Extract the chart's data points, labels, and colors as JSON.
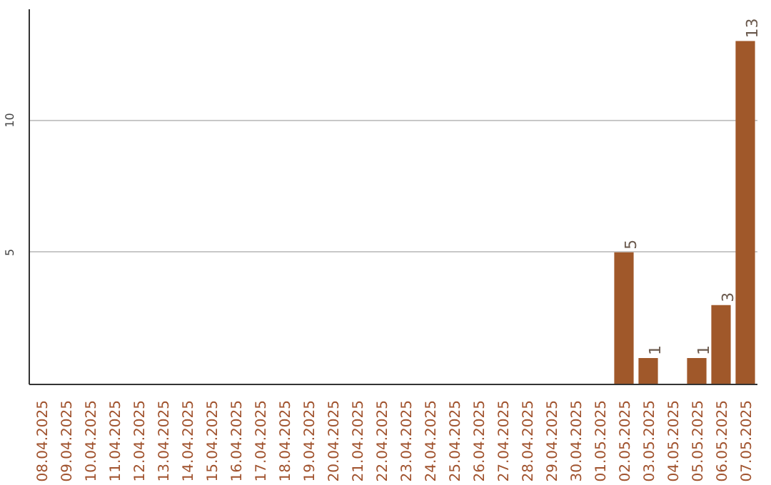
{
  "chart_data": {
    "type": "bar",
    "categories": [
      "08.04.2025",
      "09.04.2025",
      "10.04.2025",
      "11.04.2025",
      "12.04.2025",
      "13.04.2025",
      "14.04.2025",
      "15.04.2025",
      "16.04.2025",
      "17.04.2025",
      "18.04.2025",
      "19.04.2025",
      "20.04.2025",
      "21.04.2025",
      "22.04.2025",
      "23.04.2025",
      "24.04.2025",
      "25.04.2025",
      "26.04.2025",
      "27.04.2025",
      "28.04.2025",
      "29.04.2025",
      "30.04.2025",
      "01.05.2025",
      "02.05.2025",
      "03.05.2025",
      "04.05.2025",
      "05.05.2025",
      "06.05.2025",
      "07.05.2025"
    ],
    "values": [
      0,
      0,
      0,
      0,
      0,
      0,
      0,
      0,
      0,
      0,
      0,
      0,
      0,
      0,
      0,
      0,
      0,
      0,
      0,
      0,
      0,
      0,
      0,
      0,
      5,
      1,
      0,
      1,
      3,
      13
    ],
    "value_labels": [
      null,
      null,
      null,
      null,
      null,
      null,
      null,
      null,
      null,
      null,
      null,
      null,
      null,
      null,
      null,
      null,
      null,
      null,
      null,
      null,
      null,
      null,
      null,
      null,
      "5",
      "1",
      null,
      "1",
      "3",
      "13"
    ],
    "color": "#a0582a",
    "ylim": [
      0,
      14.2
    ],
    "yticks": [
      5,
      10
    ],
    "grid": "y"
  }
}
